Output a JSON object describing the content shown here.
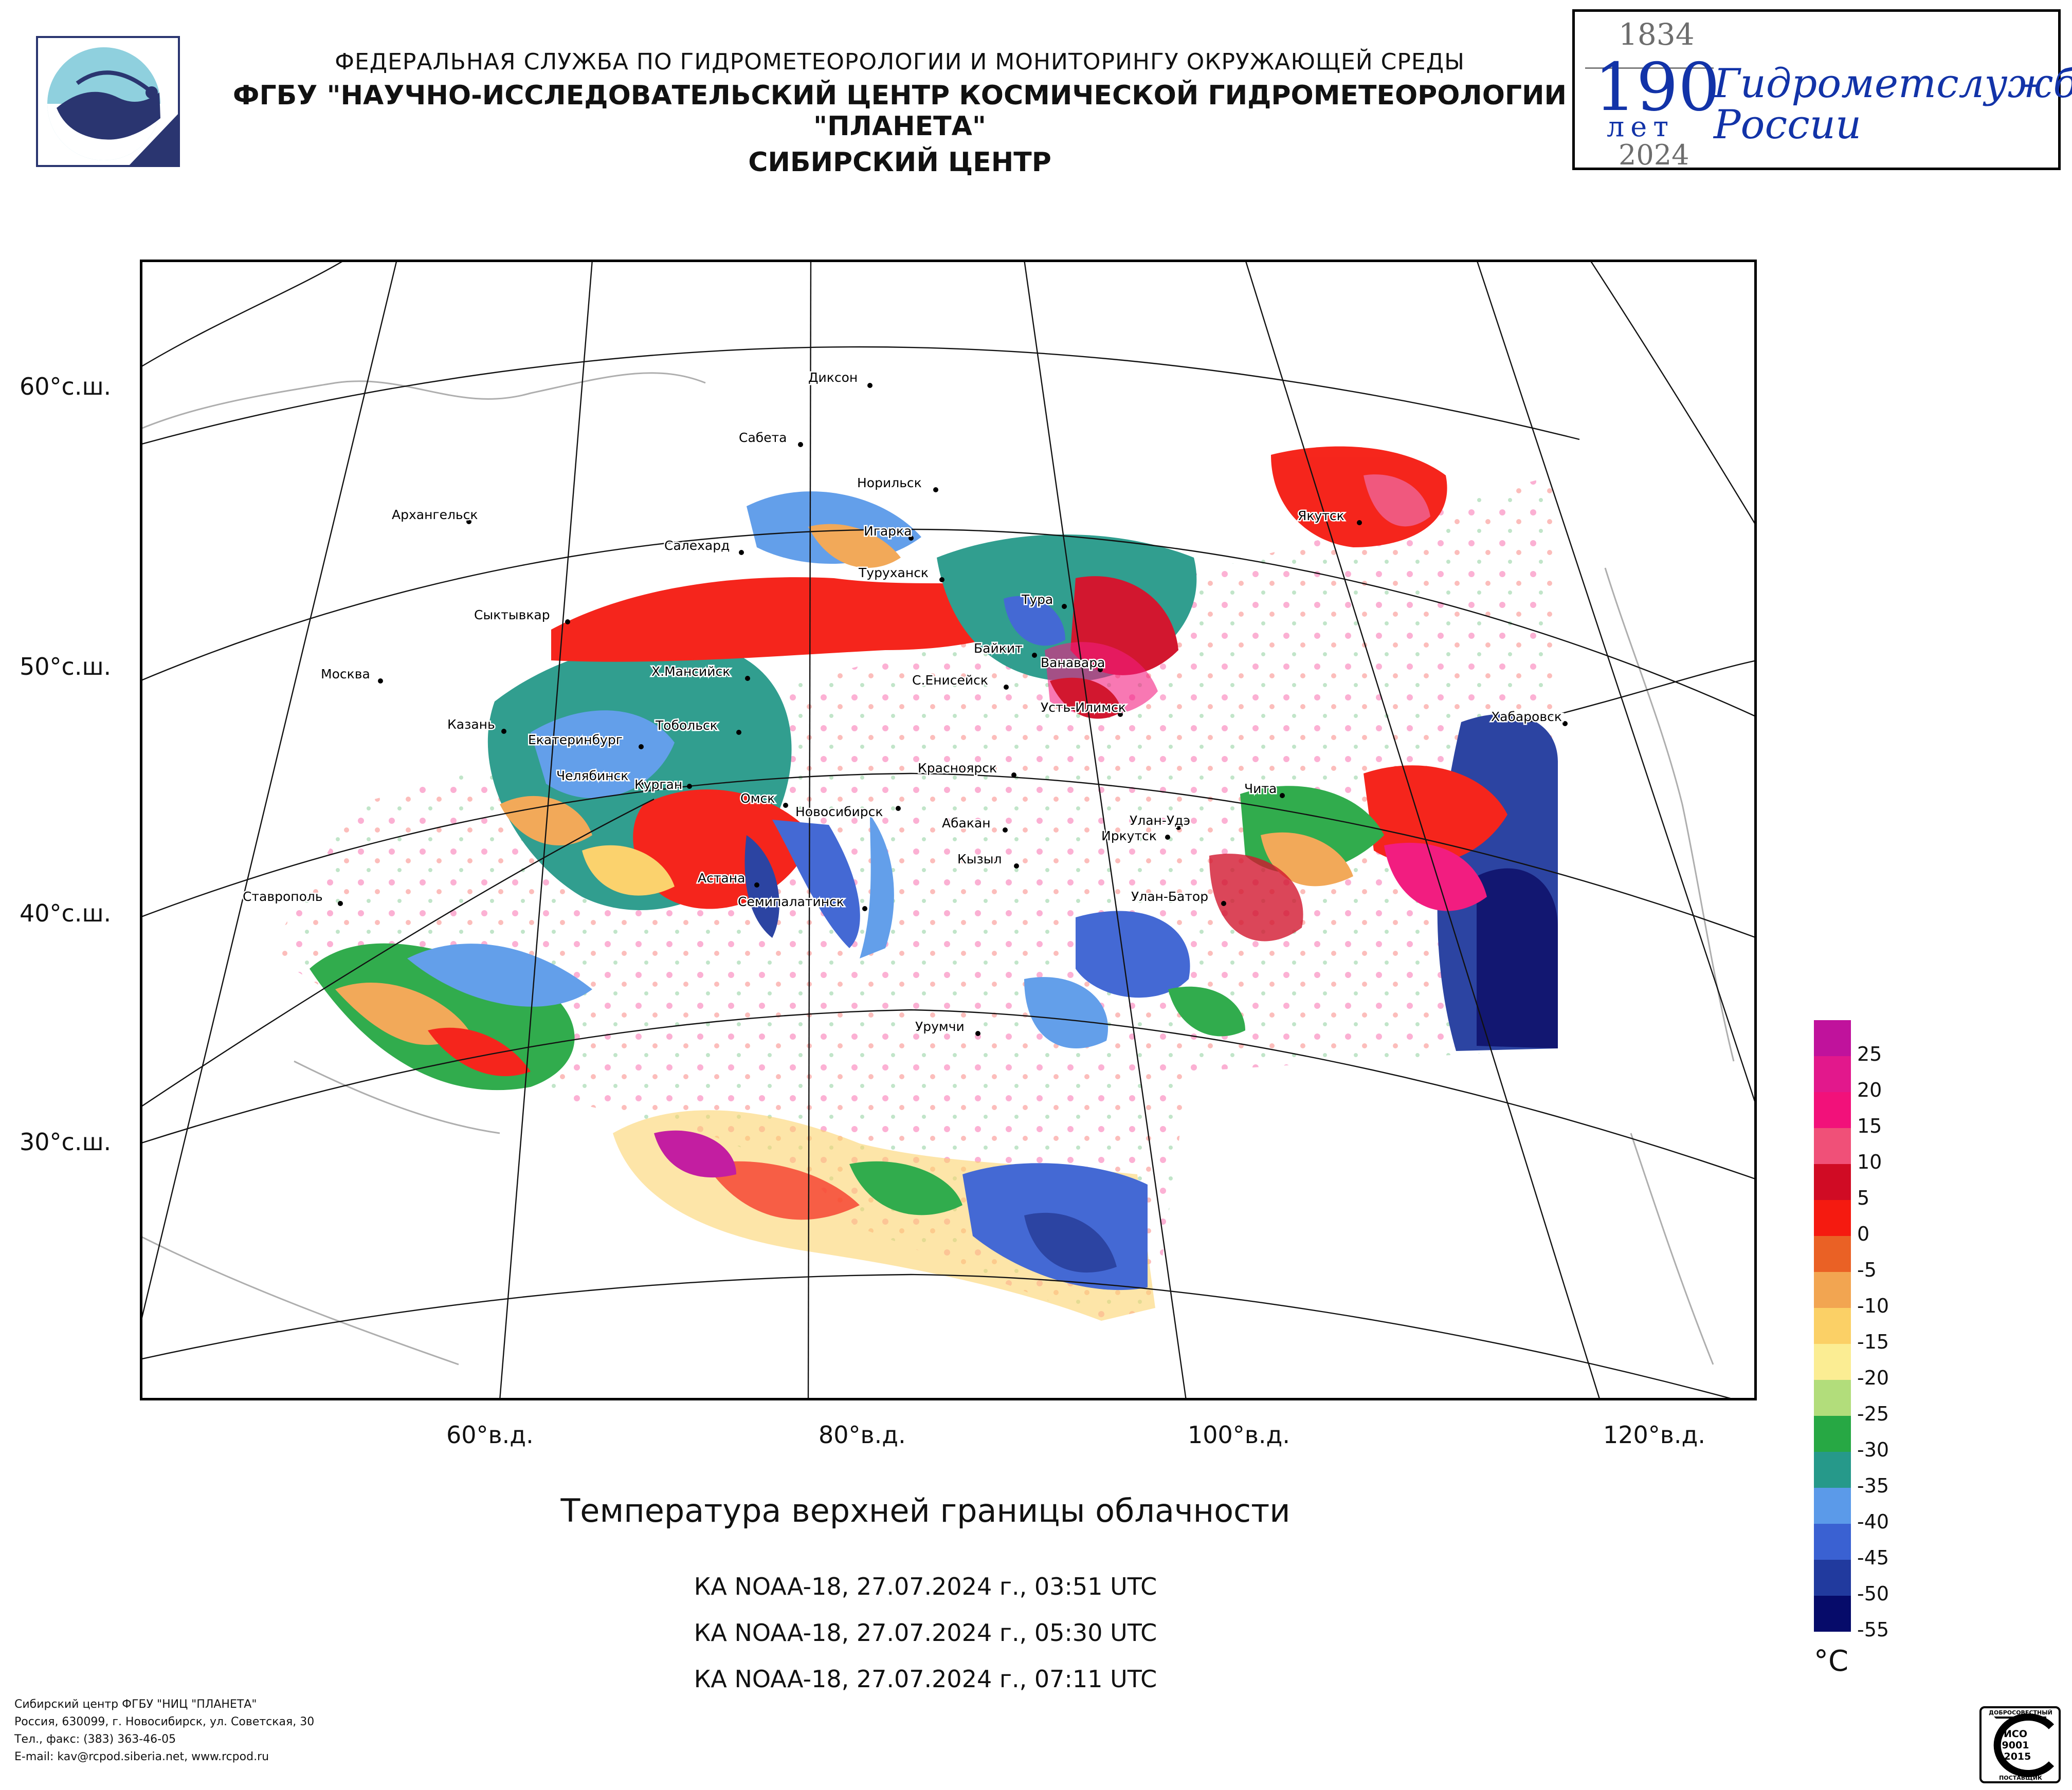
{
  "header": {
    "org_line": "ФЕДЕРАЛЬНАЯ СЛУЖБА ПО ГИДРОМЕТЕОРОЛОГИИ И МОНИТОРИНГУ ОКРУЖАЮЩЕЙ СРЕДЫ",
    "center_line": "ФГБУ \"НАУЧНО-ИССЛЕДОВАТЕЛЬСКИЙ ЦЕНТР КОСМИЧЕСКОЙ ГИДРОМЕТЕОРОЛОГИИ \"ПЛАНЕТА\"",
    "branch_line": "СИБИРСКИЙ ЦЕНТР"
  },
  "anniversary": {
    "year_start": "1834",
    "number": "190",
    "years_word": "лет",
    "slogan_line1": "Гидрометслужбе",
    "slogan_line2": "России",
    "year_end": "2024"
  },
  "map": {
    "lat_labels": [
      "60°с.ш.",
      "50°с.ш.",
      "40°с.ш.",
      "30°с.ш."
    ],
    "lon_labels": [
      "60°в.д.",
      "80°в.д.",
      "100°в.д.",
      "120°в.д."
    ],
    "cities": [
      "Диксон",
      "Сабета",
      "Норильск",
      "Архангельск",
      "Игарка",
      "Салехард",
      "Туруханск",
      "Тура",
      "Якутск",
      "Сыктывкар",
      "Байкит",
      "Ванавара",
      "Москва",
      "Х.Мансийск",
      "С.Енисейск",
      "Усть-Илимск",
      "Хабаровск",
      "Казань",
      "Тобольск",
      "Екатеринбург",
      "Челябинск",
      "Курган",
      "Красноярск",
      "Чита",
      "Омск",
      "Новосибирск",
      "Абакан",
      "Улан-Удэ",
      "Иркутск",
      "Кызыл",
      "Астана",
      "Ставрополь",
      "Семипалатинск",
      "Улан-Батор",
      "Урумчи"
    ]
  },
  "title": "Температура верхней границы облачности",
  "passes": [
    "КА NOAA-18, 27.07.2024 г., 03:51 UTC",
    "КА NOAA-18, 27.07.2024 г., 05:30 UTC",
    "КА NOAA-18, 27.07.2024 г., 07:11 UTC"
  ],
  "legend": {
    "unit": "°C",
    "labels": [
      "25",
      "20",
      "15",
      "10",
      "5",
      "0",
      "-5",
      "-10",
      "-15",
      "-20",
      "-25",
      "-30",
      "-35",
      "-40",
      "-45",
      "-50",
      "-55"
    ],
    "colors": [
      "#c0129c",
      "#e2188c",
      "#f2117a",
      "#f05078",
      "#d00b24",
      "#f51a10",
      "#ea6125",
      "#f2a551",
      "#fbd066",
      "#fbed93",
      "#b2dd7b",
      "#27a844",
      "#26998a",
      "#5b9ae9",
      "#3a61d2",
      "#213a9e",
      "#060b6a"
    ]
  },
  "footer": {
    "line1": "Сибирский центр ФГБУ \"НИЦ \"ПЛАНЕТА\"",
    "line2": "Россия, 630099, г. Новосибирск, ул. Советская, 30",
    "line3": "Тел., факс: (383) 363-46-05",
    "line4": "E-mail: kav@rcpod.siberia.net, www.rcpod.ru"
  },
  "iso_badge": {
    "top_text": "ДОБРОСОВЕСТНЫЙ",
    "line1": "ИСО",
    "line2": "9001",
    "line3": "-2015",
    "bottom_text": "ПОСТАВЩИК"
  }
}
